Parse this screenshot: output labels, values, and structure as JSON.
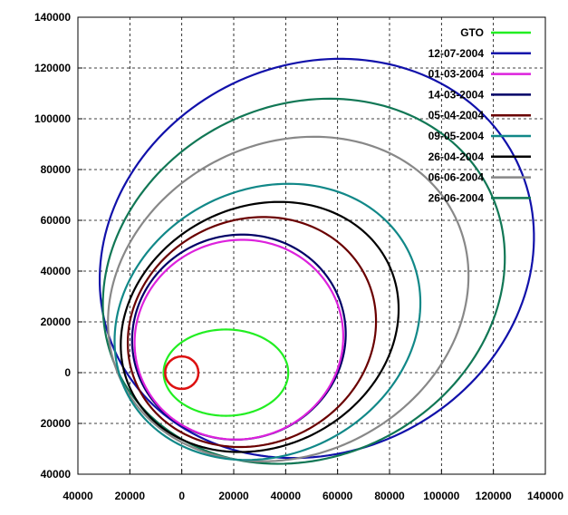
{
  "chart_data": {
    "type": "line",
    "title": "",
    "xlabel": "",
    "ylabel": "",
    "xlim": [
      -40000,
      140000
    ],
    "ylim": [
      -40000,
      140000
    ],
    "x_ticks": [
      -40000,
      -20000,
      0,
      20000,
      40000,
      60000,
      80000,
      100000,
      120000,
      140000
    ],
    "y_ticks": [
      -40000,
      -20000,
      0,
      20000,
      40000,
      60000,
      80000,
      100000,
      120000,
      140000
    ],
    "x_tick_labels": [
      "40000",
      "20000",
      "0",
      "20000",
      "40000",
      "60000",
      "80000",
      "100000",
      "120000",
      "140000"
    ],
    "y_tick_labels": [
      "40000",
      "20000",
      "0",
      "20000",
      "40000",
      "60000",
      "80000",
      "100000",
      "120000",
      "140000"
    ],
    "grid": true,
    "legend_position": "top-right",
    "earth": {
      "cx": 0,
      "cy": 0,
      "r": 6400,
      "color": "#dd1111"
    },
    "series": [
      {
        "name": "GTO",
        "color": "#22ee22",
        "x": [
          [
            -7000,
            17000
          ],
          [
            41000,
            0
          ],
          [
            17000,
            -17000
          ],
          [
            -7000,
            0
          ]
        ],
        "orbit": {
          "cx": 17000,
          "cy": 0,
          "rx": 24000,
          "ry": 17000,
          "tilt": 0
        }
      },
      {
        "name": "12-07-2004",
        "color": "#1111aa",
        "orbit": {
          "cx": 52000,
          "cy": 45000,
          "rx": 86000,
          "ry": 76000,
          "tilt": 30
        }
      },
      {
        "name": "01-03-2004",
        "color": "#dd22dd",
        "orbit": {
          "cx": 22000,
          "cy": 13000,
          "rx": 40500,
          "ry": 39000,
          "tilt": 28
        }
      },
      {
        "name": "14-03-2004",
        "color": "#000066",
        "orbit": {
          "cx": 22000,
          "cy": 14000,
          "rx": 41500,
          "ry": 40000,
          "tilt": 30
        }
      },
      {
        "name": "05-04-2004",
        "color": "#6a0000",
        "orbit": {
          "cx": 27000,
          "cy": 16000,
          "rx": 49000,
          "ry": 44000,
          "tilt": 30
        }
      },
      {
        "name": "09-05-2004",
        "color": "#118888",
        "orbit": {
          "cx": 33000,
          "cy": 20000,
          "rx": 61000,
          "ry": 52000,
          "tilt": 30
        }
      },
      {
        "name": "26-04-2004",
        "color": "#000000",
        "orbit": {
          "cx": 30000,
          "cy": 18000,
          "rx": 55500,
          "ry": 47000,
          "tilt": 30
        }
      },
      {
        "name": "06-06-2004",
        "color": "#888888",
        "orbit": {
          "cx": 41000,
          "cy": 29000,
          "rx": 72000,
          "ry": 61000,
          "tilt": 30
        }
      },
      {
        "name": "26-06-2004",
        "color": "#117755",
        "orbit": {
          "cx": 47000,
          "cy": 36000,
          "rx": 80000,
          "ry": 69000,
          "tilt": 30
        }
      }
    ]
  }
}
